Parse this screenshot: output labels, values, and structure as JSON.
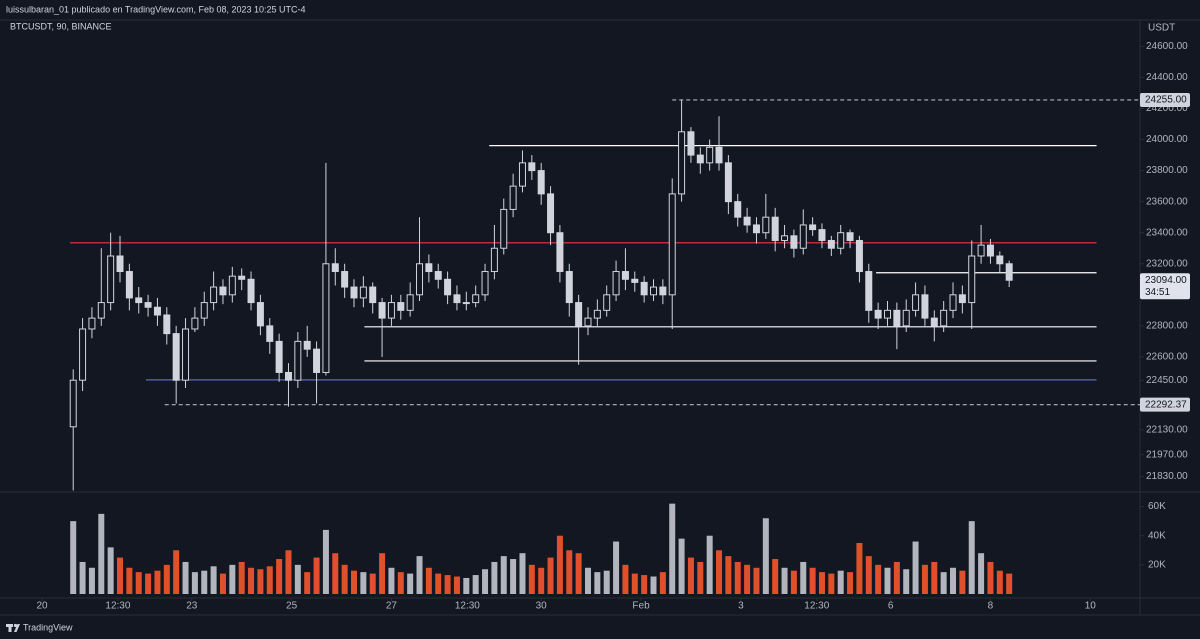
{
  "chart_data": {
    "type": "candlestick",
    "title": "luissulbaran_01 publicado en TradingView.com, Feb 08, 2023 10:25 UTC-4",
    "symbol": "BTCUSDT, 90, BINANCE",
    "y_axis_label": "USDT",
    "up_color": "#131722",
    "down_color": "#d1d4dc",
    "wick_color": "#d1d4dc",
    "volume_up_color": "#b2b5be",
    "volume_down_color": "#e0502a",
    "x": [
      15,
      19.5,
      24,
      28.5,
      33,
      37.5,
      42,
      46.5,
      51,
      55.5,
      60,
      64.5,
      69,
      73.5,
      78,
      82.5,
      87,
      91.5,
      96,
      100.5,
      105,
      109.5,
      114,
      118.5,
      123,
      127.5,
      132,
      136.5,
      141,
      145.5,
      150,
      154.5,
      159,
      163.5,
      168,
      172.5,
      177,
      181.5,
      186,
      190.5,
      195,
      199.5,
      204,
      208.5,
      213,
      217.5,
      222,
      226.5,
      231,
      235.5,
      240,
      244.5,
      249,
      253.5,
      258,
      262.5,
      267,
      271.5,
      276,
      280.5,
      285,
      289.5,
      294,
      298.5,
      303,
      307.5,
      312,
      316.5,
      321,
      325.5,
      330,
      334.5,
      339,
      343.5,
      348,
      352.5,
      357,
      361.5,
      366,
      370.5,
      375,
      379.5,
      384,
      388.5,
      393,
      397.5,
      402,
      406.5,
      411,
      415.5,
      420,
      424.5,
      429,
      433.5,
      438,
      442.5,
      447,
      451.5,
      456,
      460.5,
      465
    ],
    "open": [
      22150,
      22450,
      22780,
      22850,
      22950,
      23250,
      23150,
      22980,
      22950,
      22920,
      22870,
      22750,
      22450,
      22780,
      22850,
      22950,
      23050,
      23000,
      23120,
      23100,
      22950,
      22800,
      22700,
      22500,
      22450,
      22700,
      22650,
      22500,
      23200,
      23150,
      23050,
      22980,
      23050,
      22950,
      22850,
      22950,
      22900,
      23000,
      23200,
      23150,
      23100,
      23000,
      22950,
      22950,
      23000,
      23150,
      23300,
      23550,
      23700,
      23850,
      23800,
      23650,
      23400,
      23150,
      22950,
      22800,
      22850,
      22900,
      23000,
      23150,
      23100,
      23080,
      23000,
      23050,
      23000,
      23650,
      24050,
      23900,
      23850,
      23950,
      23850,
      23600,
      23500,
      23450,
      23400,
      23500,
      23350,
      23380,
      23300,
      23450,
      23420,
      23350,
      23300,
      23400,
      23350,
      23150,
      22900,
      22850,
      22900,
      22800,
      22900,
      23000,
      22850,
      22800,
      22900,
      23000,
      22950,
      23250,
      23320,
      23250,
      23200
    ],
    "high": [
      22520,
      22850,
      22920,
      23300,
      23400,
      23380,
      23200,
      23050,
      23000,
      22980,
      22920,
      22800,
      22850,
      22920,
      23020,
      23150,
      23100,
      23180,
      23170,
      23150,
      23000,
      22850,
      22750,
      22560,
      22760,
      22800,
      22700,
      23850,
      23300,
      23200,
      23100,
      23120,
      23080,
      22980,
      23000,
      23000,
      23080,
      23500,
      23260,
      23200,
      23150,
      23060,
      23020,
      23060,
      23200,
      23450,
      23620,
      23780,
      23930,
      23900,
      23850,
      23700,
      23450,
      23200,
      23000,
      22920,
      22970,
      23060,
      23220,
      23300,
      23150,
      23120,
      23100,
      23100,
      23750,
      24255,
      24080,
      23950,
      24000,
      24150,
      23900,
      23650,
      23560,
      23500,
      23650,
      23560,
      23450,
      23420,
      23550,
      23500,
      23460,
      23380,
      23450,
      23420,
      23380,
      23200,
      22950,
      22960,
      22950,
      22970,
      23080,
      23060,
      22900,
      22960,
      23080,
      23060,
      23350,
      23450,
      23360,
      23280,
      23220
    ],
    "low": [
      21740,
      22380,
      22720,
      22800,
      22900,
      23080,
      22900,
      22880,
      22860,
      22800,
      22680,
      22300,
      22400,
      22760,
      22800,
      22900,
      22940,
      22950,
      23030,
      22900,
      22740,
      22620,
      22440,
      22280,
      22400,
      22600,
      22300,
      22480,
      23060,
      22980,
      22920,
      22920,
      22880,
      22600,
      22800,
      22840,
      22860,
      22960,
      23080,
      23040,
      22940,
      22900,
      22900,
      22920,
      22960,
      23100,
      23260,
      23500,
      23660,
      23740,
      23580,
      23320,
      23080,
      22860,
      22550,
      22740,
      22800,
      22860,
      22960,
      23030,
      23020,
      22950,
      22960,
      22940,
      22780,
      23600,
      23850,
      23780,
      23800,
      23800,
      23520,
      23440,
      23400,
      23330,
      23360,
      23280,
      23300,
      23240,
      23260,
      23380,
      23300,
      23250,
      23260,
      23300,
      23080,
      22820,
      22780,
      22800,
      22650,
      22760,
      22860,
      22800,
      22700,
      22760,
      22850,
      22880,
      22780,
      23200,
      23200,
      23140,
      23050
    ],
    "close": [
      22450,
      22780,
      22850,
      22950,
      23250,
      23150,
      22980,
      22950,
      22920,
      22870,
      22750,
      22450,
      22780,
      22850,
      22950,
      23050,
      23000,
      23120,
      23100,
      22950,
      22800,
      22700,
      22500,
      22450,
      22700,
      22650,
      22500,
      23200,
      23150,
      23050,
      22980,
      23050,
      22950,
      22850,
      22950,
      22900,
      23000,
      23200,
      23150,
      23100,
      23000,
      22950,
      22950,
      23000,
      23150,
      23300,
      23550,
      23700,
      23850,
      23800,
      23650,
      23400,
      23150,
      22950,
      22800,
      22850,
      22900,
      23000,
      23150,
      23100,
      23080,
      23000,
      23050,
      23000,
      23650,
      24050,
      23900,
      23850,
      23950,
      23850,
      23600,
      23500,
      23450,
      23400,
      23500,
      23350,
      23380,
      23300,
      23450,
      23420,
      23350,
      23300,
      23400,
      23350,
      23150,
      22900,
      22850,
      22900,
      22800,
      22900,
      23000,
      22850,
      22800,
      22900,
      23000,
      22950,
      23250,
      23320,
      23250,
      23200,
      23094
    ],
    "volume": [
      50000,
      22000,
      18000,
      55000,
      32000,
      25000,
      18000,
      15000,
      14000,
      16000,
      20000,
      30000,
      22000,
      15000,
      16000,
      19000,
      14000,
      20000,
      22000,
      18000,
      17000,
      19000,
      24000,
      30000,
      20000,
      15000,
      25000,
      44000,
      28000,
      20000,
      16000,
      15000,
      14000,
      28000,
      18000,
      15000,
      14000,
      26000,
      18000,
      14000,
      13000,
      12000,
      11000,
      13000,
      17000,
      22000,
      26000,
      24000,
      28000,
      20000,
      18000,
      25000,
      40000,
      30000,
      28000,
      18000,
      15000,
      16000,
      36000,
      20000,
      14000,
      13000,
      12000,
      15000,
      62000,
      38000,
      25000,
      22000,
      40000,
      30000,
      26000,
      22000,
      20000,
      18000,
      52000,
      24000,
      18000,
      16000,
      22000,
      18000,
      15000,
      14000,
      16000,
      15000,
      35000,
      26000,
      20000,
      18000,
      22000,
      17000,
      36000,
      20000,
      22000,
      15000,
      18000,
      16000,
      50000,
      28000,
      22000,
      16000,
      14000
    ],
    "xlim": [
      -20.2,
      527.9
    ],
    "xticks": [
      {
        "value": 0,
        "label": "20"
      },
      {
        "value": 36.5,
        "label": "12:30"
      },
      {
        "value": 72,
        "label": "23"
      },
      {
        "value": 120,
        "label": "25"
      },
      {
        "value": 168,
        "label": "27"
      },
      {
        "value": 204.5,
        "label": "12:30"
      },
      {
        "value": 240,
        "label": "30"
      },
      {
        "value": 288,
        "label": "Feb"
      },
      {
        "value": 336,
        "label": "3"
      },
      {
        "value": 372.5,
        "label": "12:30"
      },
      {
        "value": 408,
        "label": "6"
      },
      {
        "value": 456,
        "label": "8"
      },
      {
        "value": 504,
        "label": "10"
      }
    ],
    "ylim": [
      21730,
      24770
    ],
    "yticks": [
      {
        "value": 24600,
        "label": "24600.00"
      },
      {
        "value": 24400,
        "label": "24400.00"
      },
      {
        "value": 24200,
        "label": "24200.00"
      },
      {
        "value": 24000,
        "label": "24000.00"
      },
      {
        "value": 23800,
        "label": "23800.00"
      },
      {
        "value": 23600,
        "label": "23600.00"
      },
      {
        "value": 23400,
        "label": "23400.00"
      },
      {
        "value": 23200,
        "label": "23200.00"
      },
      {
        "value": 22800,
        "label": "22800.00"
      },
      {
        "value": 22600,
        "label": "22600.00"
      },
      {
        "value": 22450,
        "label": "22450.00"
      },
      {
        "value": 22130,
        "label": "22130.00"
      },
      {
        "value": 21970,
        "label": "21970.00"
      },
      {
        "value": 21830,
        "label": "21830.00"
      }
    ],
    "volume_lim": [
      0,
      70000
    ],
    "volume_ticks": [
      {
        "value": 60000,
        "label": "60K"
      },
      {
        "value": 40000,
        "label": "40K"
      },
      {
        "value": 20000,
        "label": "20K"
      }
    ],
    "drawings": [
      {
        "value": 23335,
        "start": 13.5,
        "end": 507,
        "color": "#f23645",
        "style": "solid"
      },
      {
        "value": 23961,
        "start": 215,
        "end": 507,
        "color": "#ffffff",
        "style": "solid"
      },
      {
        "value": 23142,
        "start": 401,
        "end": 507,
        "color": "#ffffff",
        "style": "solid"
      },
      {
        "value": 22794,
        "start": 155,
        "end": 507,
        "color": "#ffffff",
        "style": "solid"
      },
      {
        "value": 22574,
        "start": 155,
        "end": 507,
        "color": "#ffffff",
        "style": "solid"
      },
      {
        "value": 22452,
        "start": 50,
        "end": 507,
        "color": "#5b6bb5",
        "style": "solid"
      },
      {
        "value": 24255,
        "start": 303,
        "end": 527.9,
        "color": "#b2b5be",
        "style": "dashed"
      },
      {
        "value": 22292.37,
        "start": 59,
        "end": 527.9,
        "color": "#b2b5be",
        "style": "dashed"
      }
    ],
    "price_labels": [
      {
        "value": 24255,
        "label": "24255.00"
      },
      {
        "value": 22292.37,
        "label": "22292.37"
      }
    ],
    "last_price": {
      "value": 23094,
      "label": "23094.00",
      "countdown": "34:51"
    }
  },
  "footer": {
    "brand": "TradingView"
  }
}
